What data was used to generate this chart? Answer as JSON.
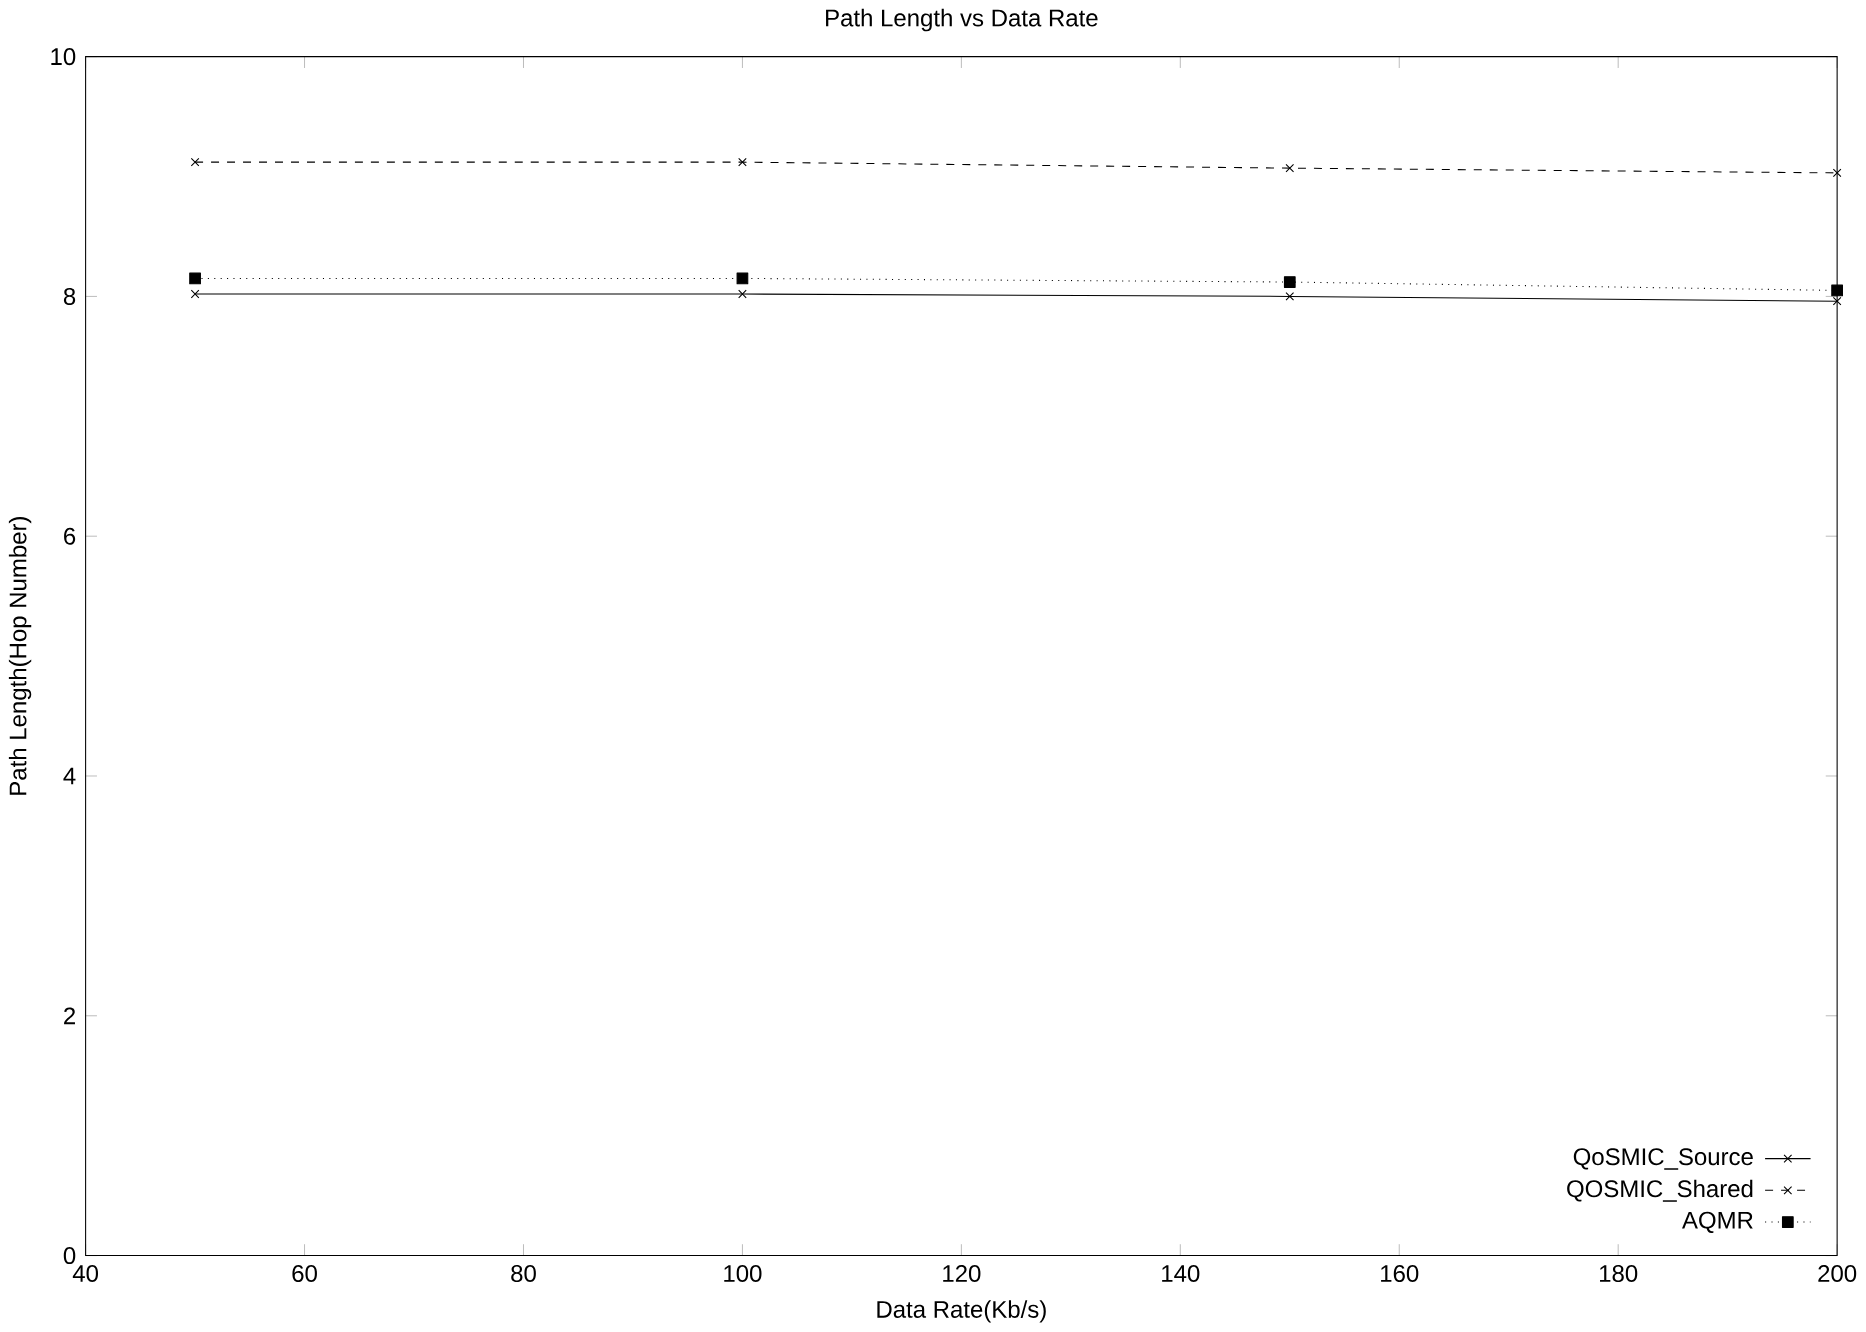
{
  "chart_data": {
    "type": "line",
    "title": "Path Length vs  Data Rate",
    "xlabel": "Data Rate(Kb/s)",
    "ylabel": "Path Length(Hop Number)",
    "x": [
      50,
      100,
      150,
      200
    ],
    "series": [
      {
        "name": "QoSMIC_Source",
        "color": "#000000",
        "marker": "cross",
        "line_style": "solid",
        "values": [
          8.02,
          8.02,
          8.0,
          7.96
        ]
      },
      {
        "name": "QOSMIC_Shared",
        "color": "#000000",
        "marker": "cross",
        "line_style": "dashed",
        "values": [
          9.12,
          9.12,
          9.07,
          9.03
        ]
      },
      {
        "name": "AQMR",
        "color": "#000000",
        "marker": "square",
        "line_style": "dotted",
        "values": [
          8.15,
          8.15,
          8.12,
          8.05
        ]
      }
    ],
    "xlim": [
      40,
      200
    ],
    "xticks": [
      40,
      60,
      80,
      100,
      120,
      140,
      160,
      180,
      200
    ],
    "ylim": [
      0,
      10
    ],
    "yticks": [
      0,
      2,
      4,
      6,
      8,
      10
    ],
    "grid": false,
    "legend": "bottom right"
  }
}
